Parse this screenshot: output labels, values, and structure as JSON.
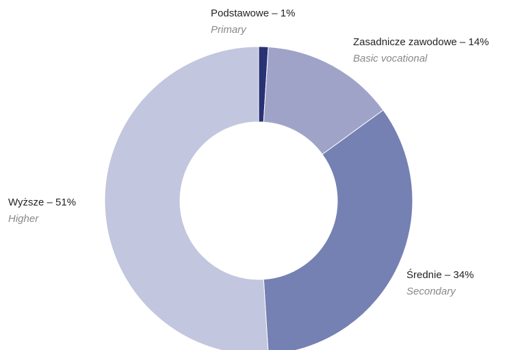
{
  "chart_data": {
    "type": "donut",
    "value_labels": [
      "Podstawowe – 1%",
      "Zasadnicze zawodowe – 14%",
      "Średnie – 34%",
      "Wyższe – 51%"
    ],
    "categories": [
      "Primary",
      "Basic vocational",
      "Secondary",
      "Higher"
    ],
    "values": [
      1,
      14,
      34,
      51
    ],
    "colors": [
      "#2a3275",
      "#a0a3c8",
      "#7580b3",
      "#c2c6de"
    ]
  }
}
